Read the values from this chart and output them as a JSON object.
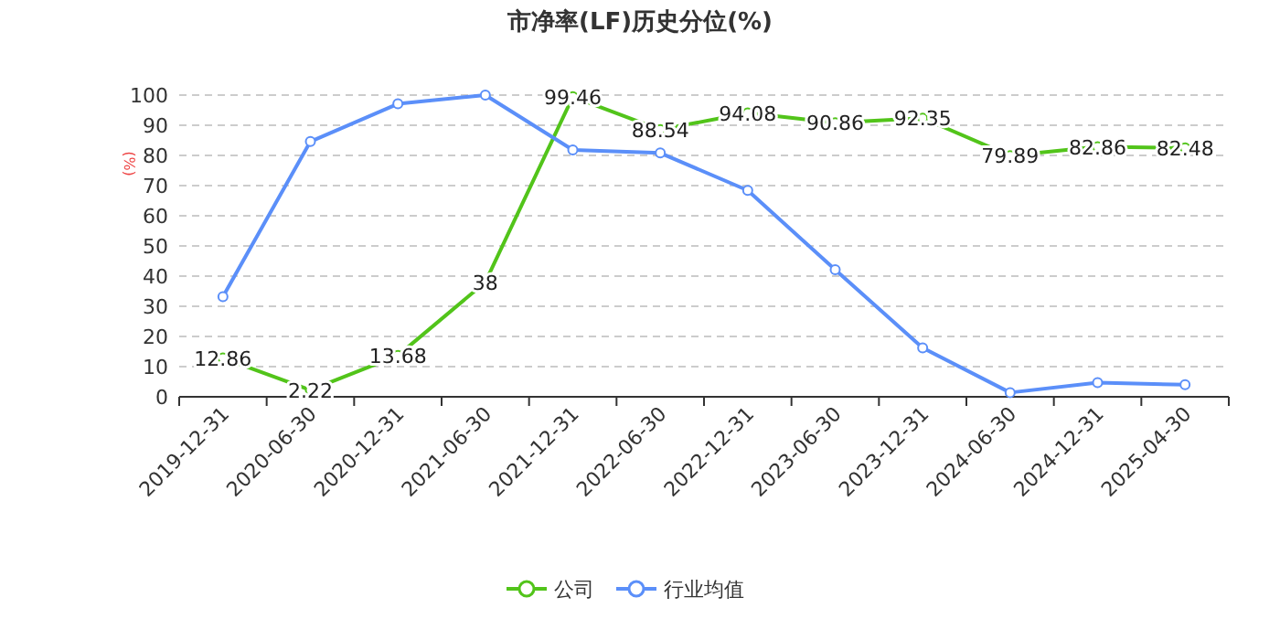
{
  "chart_data": {
    "type": "line",
    "title": "市净率(LF)历史分位(%)",
    "ylabel": "(%)",
    "categories": [
      "2019-12-31",
      "2020-06-30",
      "2020-12-31",
      "2021-06-30",
      "2021-12-31",
      "2022-06-30",
      "2022-12-31",
      "2023-06-30",
      "2023-12-31",
      "2024-06-30",
      "2024-12-31",
      "2025-04-30"
    ],
    "series": [
      {
        "name": "公司",
        "color": "#52c41a",
        "values": [
          12.86,
          2.22,
          13.68,
          38,
          99.46,
          88.54,
          94.08,
          90.86,
          92.35,
          79.89,
          82.86,
          82.48
        ],
        "data_labels": true
      },
      {
        "name": "行业均值",
        "color": "#5b8ff9",
        "values": [
          33.2,
          84.6,
          97.1,
          100,
          81.8,
          80.8,
          68.4,
          42.1,
          16.2,
          1.4,
          4.7,
          4.0
        ]
      }
    ],
    "ylim": [
      0,
      100
    ],
    "yticks": [
      0,
      10,
      20,
      30,
      40,
      50,
      60,
      70,
      80,
      90,
      100
    ],
    "grid": "y",
    "legend": "bottom",
    "marker": "circle"
  }
}
